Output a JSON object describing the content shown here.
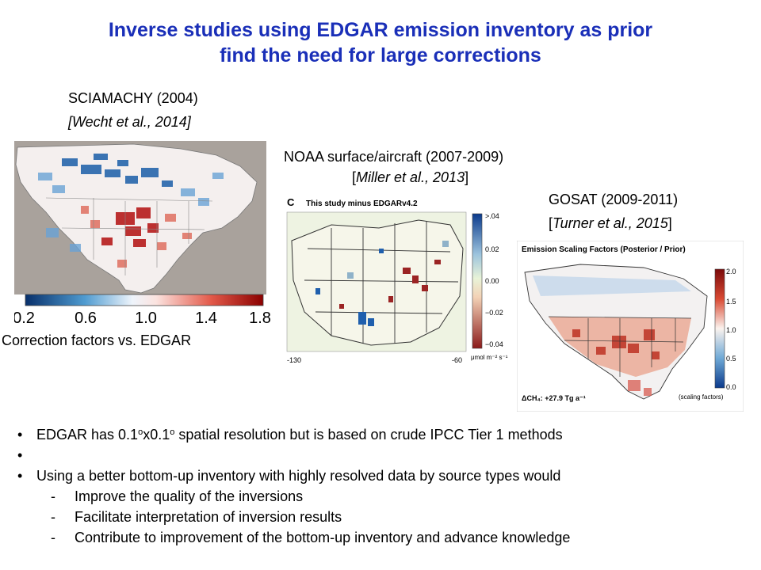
{
  "slide": {
    "title_line1": "Inverse studies using EDGAR emission inventory as prior",
    "title_line2": "find the need for large corrections"
  },
  "panels": {
    "sciamachy": {
      "caption": "SCIAMACHY (2004)",
      "citation": "[Wecht et al., 2014]",
      "colorbar_ticks": [
        "0.2",
        "0.6",
        "1.0",
        "1.4",
        "1.8"
      ],
      "footer": "Correction factors vs. EDGAR"
    },
    "noaa": {
      "caption": "NOAA surface/aircraft (2007-2009)",
      "citation_open": "[",
      "citation_italic": "Miller et al., 2013",
      "citation_close": "]",
      "panel_letter": "C",
      "panel_title": "This study minus EDGARv4.2",
      "colorbar_ticks": [
        ">.04",
        "0.02",
        "0.00",
        "−0.02",
        "−0.04"
      ],
      "colorbar_unit": "μmol m⁻² s⁻¹",
      "lon_left": "-130",
      "lon_right": "-60"
    },
    "gosat": {
      "caption": "GOSAT (2009-2011)",
      "citation": "[Turner et al., 2015]",
      "panel_title": "Emission Scaling Factors (Posterior / Prior)",
      "colorbar_ticks": [
        "2.0",
        "1.5",
        "1.0",
        "0.5",
        "0.0"
      ],
      "colorbar_label": "(scaling factors)",
      "total": "ΔCH₄: +27.9 Tg a⁻¹"
    }
  },
  "bullets": {
    "b1_pre": "EDGAR has 0.1",
    "b1_sup1": "o",
    "b1_mid": "x0.1",
    "b1_sup2": "o",
    "b1_post": " spatial resolution but is based on crude IPCC Tier 1 methods",
    "b2": "",
    "b3": "Using a better bottom-up inventory with highly resolved data by source types would",
    "sub": [
      "Improve the quality of the inversions",
      "Facilitate interpretation of inversion results",
      "Contribute to improvement of the bottom-up inventory and advance knowledge"
    ]
  }
}
